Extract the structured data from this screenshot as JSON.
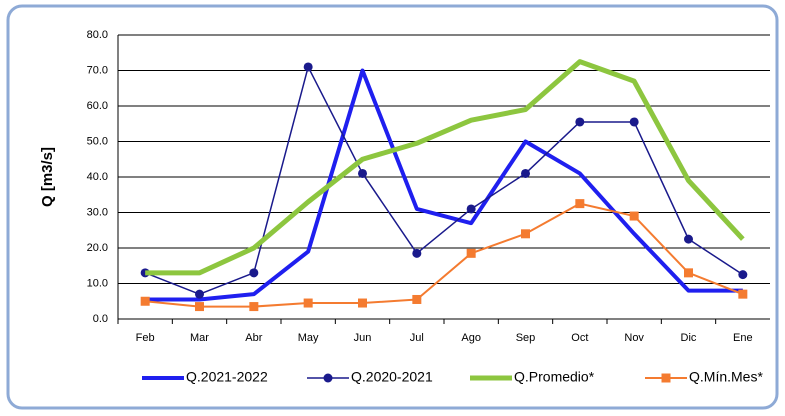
{
  "chart_data": {
    "type": "line",
    "y_label": "Q [m3/s]",
    "categories": [
      "Feb",
      "Mar",
      "Abr",
      "May",
      "Jun",
      "Jul",
      "Ago",
      "Sep",
      "Oct",
      "Nov",
      "Dic",
      "Ene"
    ],
    "ylim": [
      0,
      80
    ],
    "yticks": [
      {
        "value": 0,
        "label": "0.0"
      },
      {
        "value": 10,
        "label": "10.0"
      },
      {
        "value": 20,
        "label": "20.0"
      },
      {
        "value": 30,
        "label": "30.0"
      },
      {
        "value": 40,
        "label": "40.0"
      },
      {
        "value": 50,
        "label": "50.0"
      },
      {
        "value": 60,
        "label": "60.0"
      },
      {
        "value": 70,
        "label": "70.0"
      },
      {
        "value": 80,
        "label": "80.0"
      }
    ],
    "grid": true,
    "legend": "bottom",
    "series": [
      {
        "name": "Q.2021-2022",
        "color": "#1f1fef",
        "marker": "none",
        "width": 4,
        "values": [
          5.5,
          5.5,
          7,
          19,
          70,
          31,
          27,
          50,
          41,
          24,
          8,
          8
        ]
      },
      {
        "name": "Q.2020-2021",
        "color": "#1a1a8c",
        "marker": "circle",
        "width": 1.5,
        "values": [
          13,
          7,
          13,
          71,
          41,
          18.5,
          31,
          41,
          55.5,
          55.5,
          22.5,
          12.5
        ]
      },
      {
        "name": "Q.Promedio*",
        "color": "#8dc63f",
        "marker": "none",
        "width": 5,
        "values": [
          13,
          13,
          20,
          33,
          45,
          49.5,
          56,
          59,
          72.5,
          67,
          39,
          22.5
        ]
      },
      {
        "name": "Q.Mín.Mes*",
        "color": "#f47b30",
        "marker": "square",
        "width": 2,
        "values": [
          5,
          3.5,
          3.5,
          4.5,
          4.5,
          5.5,
          18.5,
          24,
          32.5,
          29,
          13,
          7
        ]
      }
    ]
  }
}
